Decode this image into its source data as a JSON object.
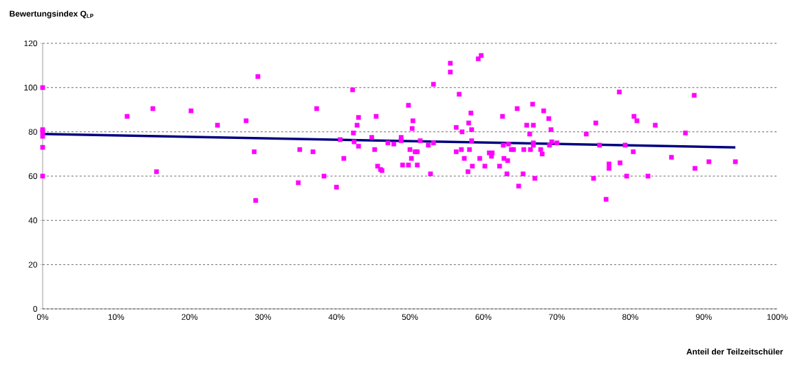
{
  "chart_data": {
    "type": "scatter",
    "xlabel": "Anteil der Teilzeitschüler",
    "ylabel": "Bewertungsindex Q$_{LP}$",
    "xlim": [
      0,
      100
    ],
    "ylim": [
      0,
      120
    ],
    "xticks": [
      {
        "value": 0,
        "label": "0%"
      },
      {
        "value": 10,
        "label": "10%"
      },
      {
        "value": 20,
        "label": "20%"
      },
      {
        "value": 30,
        "label": "30%"
      },
      {
        "value": 40,
        "label": "40%"
      },
      {
        "value": 50,
        "label": "50%"
      },
      {
        "value": 60,
        "label": "60%"
      },
      {
        "value": 70,
        "label": "70%"
      },
      {
        "value": 80,
        "label": "80%"
      },
      {
        "value": 90,
        "label": "90%"
      },
      {
        "value": 100,
        "label": "100%"
      }
    ],
    "yticks": [
      0,
      20,
      40,
      60,
      80,
      100,
      120
    ],
    "grid": "y",
    "series": [
      {
        "marker": "square",
        "color": "#ff00ff",
        "x": [
          0,
          0,
          0,
          0,
          0,
          0,
          11.5,
          15,
          15.5,
          20.2,
          23.8,
          27.7,
          28.8,
          29,
          29.3,
          34.8,
          35,
          36.8,
          37.3,
          38.3,
          40,
          40.5,
          41,
          42.2,
          42.3,
          42.4,
          42.8,
          43,
          43,
          44.8,
          45.2,
          45.4,
          45.6,
          46,
          46.2,
          47,
          47.8,
          48.8,
          48.8,
          49,
          49.8,
          49.8,
          50,
          50.2,
          50.3,
          50.4,
          50.7,
          51,
          51,
          51.4,
          52.5,
          52.8,
          53.2,
          53.2,
          55.5,
          55.5,
          56.3,
          56.3,
          56.7,
          57.1,
          57,
          57.4,
          57.9,
          58,
          58.1,
          58.3,
          58.4,
          58.4,
          58.5,
          59.3,
          59.7,
          59.5,
          60.2,
          60.8,
          61.2,
          61.1,
          62.2,
          62.6,
          62.7,
          62.8,
          63.2,
          63.3,
          63.4,
          63.8,
          64.1,
          64.6,
          64.8,
          65.4,
          65.5,
          65.9,
          66.3,
          66.4,
          66.7,
          66.8,
          66.8,
          66.8,
          67,
          67.8,
          68,
          68.2,
          68.9,
          69,
          69.2,
          69.3,
          70,
          74,
          75,
          75.3,
          75.8,
          76.7,
          77.1,
          77.1,
          78.5,
          78.6,
          79.3,
          79.5,
          80.4,
          80.5,
          80.9,
          82.4,
          83.4,
          85.6,
          87.5,
          88.7,
          88.8,
          90.7,
          94.3
        ],
        "values": [
          100,
          81,
          80,
          78,
          73,
          60,
          87,
          90.5,
          62,
          89.5,
          83,
          85,
          71,
          49,
          105,
          57,
          72,
          71,
          90.5,
          60,
          55,
          76.5,
          68,
          99,
          79.5,
          75.5,
          83,
          86.5,
          73.5,
          77.5,
          72,
          87,
          64.5,
          63,
          62.5,
          75,
          74.5,
          76,
          77.5,
          65,
          92,
          65,
          72,
          68,
          81.5,
          85,
          71,
          65,
          71,
          76,
          74,
          61,
          101.5,
          75,
          111,
          107,
          82,
          71,
          97,
          80,
          72,
          68,
          62,
          84,
          72,
          88.5,
          81,
          76,
          64.5,
          113,
          114.5,
          68,
          64.5,
          70.5,
          70.5,
          69,
          64.5,
          87,
          74,
          68,
          61,
          67,
          74.5,
          72,
          72,
          90.5,
          55.5,
          61,
          72,
          83,
          79,
          72,
          92.5,
          83,
          75,
          74,
          59,
          72,
          70,
          89.5,
          86,
          74,
          81,
          75.5,
          75,
          79,
          59,
          84,
          74,
          49.5,
          65.5,
          63.5,
          98,
          66,
          74,
          60,
          71,
          87,
          85,
          60,
          83,
          68.5,
          79.5,
          96.5,
          63.5,
          66.5,
          66.5
        ]
      },
      {
        "type": "line",
        "color": "#000080",
        "x": [
          0,
          94.3
        ],
        "values": [
          79,
          73
        ]
      }
    ]
  }
}
